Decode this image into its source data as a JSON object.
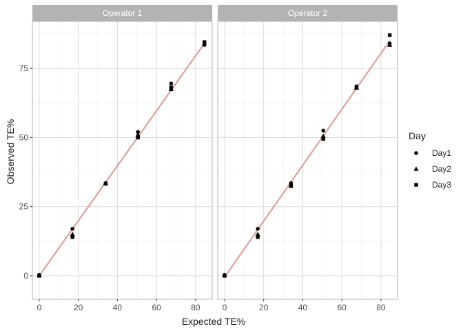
{
  "chart_data": {
    "type": "scatter",
    "facet_variable": "Operator",
    "facets": [
      {
        "label": "Operator 1",
        "series": [
          {
            "name": "Day1",
            "shape": "circle",
            "x": [
              0,
              17,
              34,
              50.5,
              67.5,
              84.5
            ],
            "y": [
              0.3,
              17,
              33.5,
              52,
              69.5,
              83.5
            ]
          },
          {
            "name": "Day2",
            "shape": "triangle",
            "x": [
              0,
              17,
              34,
              50.5,
              67.5,
              84.5
            ],
            "y": [
              0.2,
              15,
              33.4,
              51,
              67.5,
              84
            ]
          },
          {
            "name": "Day3",
            "shape": "square",
            "x": [
              0,
              17,
              34,
              50.5,
              67.5,
              84.5
            ],
            "y": [
              0,
              14,
              33.3,
              50,
              68,
              84.5
            ]
          }
        ],
        "fit_line": {
          "x": [
            0,
            84.5
          ],
          "y": [
            0,
            84
          ]
        }
      },
      {
        "label": "Operator 2",
        "series": [
          {
            "name": "Day1",
            "shape": "circle",
            "x": [
              0,
              17,
              34,
              50.5,
              67.5,
              84.5
            ],
            "y": [
              0.3,
              17,
              33.5,
              52.5,
              68.5,
              84
            ]
          },
          {
            "name": "Day2",
            "shape": "triangle",
            "x": [
              0,
              17,
              34,
              50.5,
              67.5,
              84.5
            ],
            "y": [
              0.2,
              15,
              32.5,
              50.5,
              68,
              83.5
            ]
          },
          {
            "name": "Day3",
            "shape": "square",
            "x": [
              0,
              17,
              34,
              50.5,
              67.5,
              84.5
            ],
            "y": [
              0,
              14,
              32.5,
              49.5,
              68,
              87
            ]
          }
        ],
        "fit_line": {
          "x": [
            0,
            84.5
          ],
          "y": [
            -0.5,
            85
          ]
        }
      }
    ],
    "xlabel": "Expected TE%",
    "ylabel": "Observed TE%",
    "xlim": [
      -3.5,
      88.5
    ],
    "ylim": [
      -8.5,
      92
    ],
    "xticks": [
      0,
      20,
      40,
      60,
      80
    ],
    "yticks": [
      0,
      25,
      50,
      75
    ],
    "grid": true,
    "theme": "light",
    "legend": {
      "title": "Day",
      "position": "right",
      "entries": [
        "Day1",
        "Day2",
        "Day3"
      ]
    },
    "colors": {
      "points": "#000000",
      "fit_line": "#e8918a",
      "fit_band": "#bdbdbd",
      "strip_background": "#b3b3b3",
      "panel_border": "#b3b3b3",
      "grid_major": "#dedede",
      "grid_minor": "#ececec"
    }
  }
}
